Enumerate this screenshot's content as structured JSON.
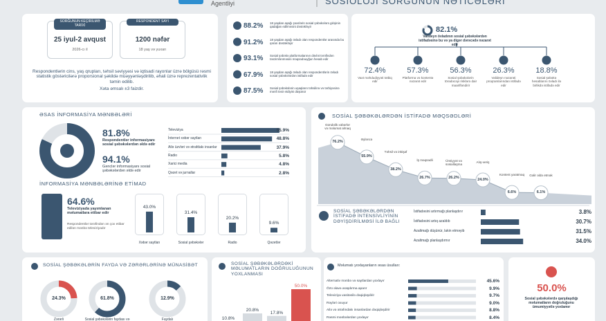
{
  "header": {
    "agency": "Agentliyi",
    "title": "SOSİOLOJİ SORĞUNUN NƏTİCƏLƏRİ"
  },
  "survey": {
    "date_label": "SORĞUNUN KEÇİRİLMƏ TARİXİ",
    "date": "25 iyul-2 avqust",
    "year": "2026-cı il",
    "count_label": "RESPONDENT SAYI",
    "count": "1200 nəfər",
    "age": "18 yaş və yuxarı",
    "note": "Respondentlərin cins, yaş qrupları, təhsil səviyyəsi və iqtisadi rayonlar üzrə bölgüsü rəsmi statistik göstəricilərə proporsional şəkildə müəyyənləşdirilib, əhali üzrə reprezentativlik təmin edilib.",
    "error": "Xəta əmsalı ±3 faizdir."
  },
  "attitudes": [
    {
      "value": "88.2%",
      "text": "18 yaşdan aşağı şəxslərin sosial şəbəkələrə girişinin qadağan edilməsini dəstəkləyir"
    },
    {
      "value": "91.2%",
      "text": "18 yaşdan aşağı övladı olan respondentlər arasında bu qərarı dəstəkləyir"
    },
    {
      "value": "93.1%",
      "text": "Sosial şəbəkə platformalarının dövlət tərəfindən tənzimlənməsini məqsədəuyğun hesab edir"
    },
    {
      "value": "67.9%",
      "text": "18 yaşdan aşağı övladı olan respondentlərin övladı sosial şəbəkələrdən istifadə edir"
    },
    {
      "value": "87.5%",
      "text": "Sosial şəbəkələrin uşaqların təhsilinə və tərbiyəsinə mənfi təsir etdiyini düşünür"
    }
  ],
  "parental_control": {
    "value": 82.1,
    "value_label": "82.1%",
    "text": "Valideyn övladının sosial şəbəkələrdən istifadəsinə bu və ya digər dərəcədə nəzarət edir",
    "items": [
      {
        "value_label": "72.4%",
        "text": "Vaxt məhdudiyyəti tətbiq edir"
      },
      {
        "value_label": "57.3%",
        "text": "Platforma və kontentə nəzarət edir"
      },
      {
        "value_label": "56.3%",
        "text": "Sosial şəbəkələrin törədəcəyi risklərə dair maarifləndirir"
      },
      {
        "value_label": "26.3%",
        "text": "Valideyn nəzarəti proqramlarından istifadə edir"
      },
      {
        "value_label": "18.8%",
        "text": "Sosial şəbəkə hesablarını övladı ilə birlikdə istifadə edir"
      }
    ]
  },
  "info_sources": {
    "title": "ƏSAS İNFORMASİYA MƏNBƏLƏRİ",
    "social": {
      "value": 81.8,
      "value_label": "81.8%",
      "text": "Respondentlər informasiyanı sosial şəbəkələrdən əldə edir"
    },
    "youth": {
      "value_label": "94.1%",
      "text": "Gənclər informasiyanı sosial şəbəkələrdən əldə edir"
    },
    "items": [
      {
        "name": "Televiziya",
        "value": 55.9,
        "value_label": "55.9%"
      },
      {
        "name": "İnternet xəbər saytları",
        "value": 48.8,
        "value_label": "48.8%"
      },
      {
        "name": "Ailə üzvləri və ətrafdakı insanlar",
        "value": 37.9,
        "value_label": "37.9%"
      },
      {
        "name": "Radio",
        "value": 5.8,
        "value_label": "5.8%"
      },
      {
        "name": "Xarici media",
        "value": 4.8,
        "value_label": "4.8%"
      },
      {
        "name": "Qəzet və jurnallar",
        "value": 2.8,
        "value_label": "2.8%"
      }
    ]
  },
  "trust": {
    "title": "İNFORMASİYA MƏNBƏLƏRİNƏ ETİMAD",
    "highlight": {
      "value_label": "64.6%",
      "text": "Televiziyada yayımlanan məlumatlara etibar edir",
      "note": "Respondentlər tərəfindən ən çox etibar edilən mənbə televiziyadır"
    },
    "items": [
      {
        "name": "Xəbər saytları",
        "value": 43.0,
        "value_label": "43.0%"
      },
      {
        "name": "Sosial şəbəkələr",
        "value": 31.4,
        "value_label": "31.4%"
      },
      {
        "name": "Radio",
        "value": 20.2,
        "value_label": "20.2%"
      },
      {
        "name": "Qəzetlər",
        "value": 9.6,
        "value_label": "9.6%"
      }
    ]
  },
  "purposes": {
    "title": "SOSİAL ŞƏBƏKƏLƏRDƏN İSTİFADƏ MƏQSƏDLƏRİ",
    "items": [
      {
        "name": "Gündəlik xəbərlər və məlumat almaq",
        "value": 76.2,
        "value_label": "76.2%"
      },
      {
        "name": "Əyləncə",
        "value": 55.9,
        "value_label": "55.9%"
      },
      {
        "name": "Təhsil və inkişaf",
        "value": 38.2,
        "value_label": "38.2%"
      },
      {
        "name": "İş məqsədli",
        "value": 26.7,
        "value_label": "26.7%"
      },
      {
        "name": "Ünsiyyət və sosiallaşma",
        "value": 26.2,
        "value_label": "26.2%"
      },
      {
        "name": "Alış-veriş",
        "value": 24.0,
        "value_label": "24.0%"
      },
      {
        "name": "Kontent yaratmaq",
        "value": 6.6,
        "value_label": "6.6%"
      },
      {
        "name": "Gəlir əldə etmək",
        "value": 6.1,
        "value_label": "6.1%"
      }
    ]
  },
  "intensity": {
    "title": "SOSİAL ŞƏBƏKƏLƏRDƏN İSTİFADƏ İNTENSİVLİYİNİN DƏYİŞDİRİLMƏSİ İLƏ BAĞLI",
    "items": [
      {
        "name": "İstifadəsini artırmağı planlaşdırır",
        "value": 3.8,
        "value_label": "3.8%"
      },
      {
        "name": "İstifadəsini artıq azaldıb",
        "value": 30.7,
        "value_label": "30.7%"
      },
      {
        "name": "Azaltmağı düşünür, lakin etməyib",
        "value": 31.5,
        "value_label": "31.5%"
      },
      {
        "name": "Azaltmağı planlaşdırmır",
        "value": 34.0,
        "value_label": "34.0%"
      }
    ]
  },
  "benefit_harm": {
    "title": "SOSİAL ŞƏBƏKƏLƏRİN FAYDA VƏ ZƏRƏRLƏRİNƏ MÜNASİBƏT",
    "items": [
      {
        "name": "Zərərli",
        "value": 24.3,
        "value_label": "24.3%"
      },
      {
        "name": "Sosial şəbəkələrin faydası və zərəri bərabərdir",
        "value": 61.8,
        "value_label": "61.8%"
      },
      {
        "name": "Faydalı",
        "value": 12.9,
        "value_label": "12.9%"
      }
    ]
  },
  "verification": {
    "title": "SOSİAL ŞƏBƏKƏLƏRDƏKİ MƏLUMATLARIN DOĞRULUĞUNUN YOXLANMASI",
    "values": [
      10.8,
      20.8,
      17.8,
      50.0
    ],
    "value_labels": [
      "10.8%",
      "20.8%",
      "17.8%",
      "50.0%"
    ]
  },
  "methods": {
    "title": "Məlumatı yoxlayanların əsas üsulları:",
    "items": [
      {
        "name": "Alternativ mənbə və saytlardan yoxlayır",
        "value": 45.6,
        "value_label": "45.6%"
      },
      {
        "name": "Özü əlavə araşdırma aparır",
        "value": 9.9,
        "value_label": "9.9%"
      },
      {
        "name": "Televiziya vasitəsilə dəqiqləşdirir",
        "value": 9.7,
        "value_label": "9.7%"
      },
      {
        "name": "Rəyləri oxuyur",
        "value": 9.0,
        "value_label": "9.0%"
      },
      {
        "name": "Ailə və ətrafındakı insanlardan dəqiqləşdirir",
        "value": 8.8,
        "value_label": "8.8%"
      },
      {
        "name": "Rəsmi mənbələrdən yoxlayır",
        "value": 8.4,
        "value_label": "8.4%"
      }
    ]
  },
  "no_check": {
    "value_label": "50.0%",
    "text": "Sosial şəbəkələrdə qarşılaşdığı məlumatların doğruluğunu ümumiyyətlə yoxlamır"
  }
}
